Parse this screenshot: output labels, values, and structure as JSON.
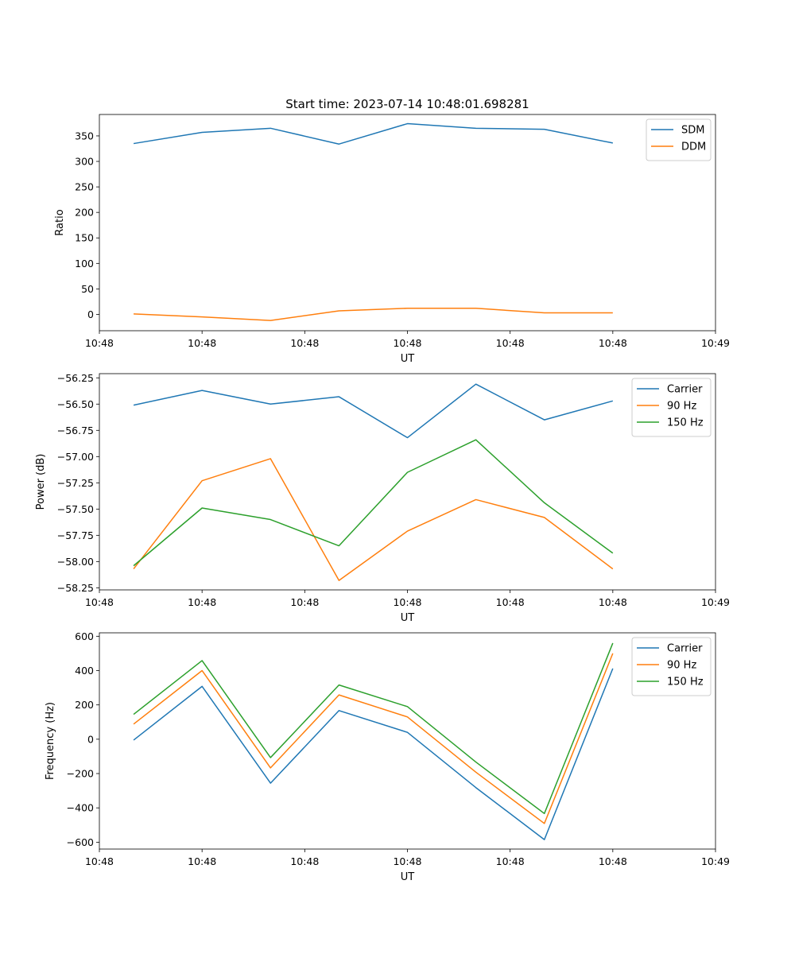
{
  "figure": {
    "title": "Start time: 2023-07-14 10:48:01.698281"
  },
  "colors": {
    "blue": "#1f77b4",
    "orange": "#ff7f0e",
    "green": "#2ca02c"
  },
  "chart_data": [
    {
      "type": "line",
      "title": "Start time: 2023-07-14 10:48:01.698281",
      "xlabel": "UT",
      "ylabel": "Ratio",
      "x": [
        1,
        2,
        3,
        4,
        5,
        6,
        7,
        8
      ],
      "xlim": [
        0.5,
        9.5
      ],
      "xticks": [
        0.5,
        2.0,
        3.5,
        5.0,
        6.5,
        8.0,
        9.5
      ],
      "xtick_labels": [
        "10:48",
        "10:48",
        "10:48",
        "10:48",
        "10:48",
        "10:48",
        "10:49"
      ],
      "ylim": [
        -32,
        392
      ],
      "yticks": [
        0,
        50,
        100,
        150,
        200,
        250,
        300,
        350
      ],
      "legend_position": "top-right",
      "series": [
        {
          "name": "SDM",
          "color": "#1f77b4",
          "values": [
            335,
            357,
            365,
            334,
            374,
            365,
            363,
            336
          ]
        },
        {
          "name": "DDM",
          "color": "#ff7f0e",
          "values": [
            1,
            -5,
            -12,
            7,
            12,
            12,
            3,
            3
          ]
        }
      ]
    },
    {
      "type": "line",
      "title": "",
      "xlabel": "UT",
      "ylabel": "Power (dB)",
      "x": [
        1,
        2,
        3,
        4,
        5,
        6,
        7,
        8
      ],
      "xlim": [
        0.5,
        9.5
      ],
      "xticks": [
        0.5,
        2.0,
        3.5,
        5.0,
        6.5,
        8.0,
        9.5
      ],
      "xtick_labels": [
        "10:48",
        "10:48",
        "10:48",
        "10:48",
        "10:48",
        "10:48",
        "10:49"
      ],
      "ylim": [
        -58.27,
        -56.21
      ],
      "yticks": [
        -58.25,
        -58.0,
        -57.75,
        -57.5,
        -57.25,
        -57.0,
        -56.75,
        -56.5,
        -56.25
      ],
      "ytick_labels": [
        "−58.25",
        "−58.00",
        "−57.75",
        "−57.50",
        "−57.25",
        "−57.00",
        "−56.75",
        "−56.50",
        "−56.25"
      ],
      "legend_position": "top-right",
      "series": [
        {
          "name": "Carrier",
          "color": "#1f77b4",
          "values": [
            -56.51,
            -56.37,
            -56.5,
            -56.43,
            -56.82,
            -56.31,
            -56.65,
            -56.47
          ]
        },
        {
          "name": "90 Hz",
          "color": "#ff7f0e",
          "values": [
            -58.07,
            -57.23,
            -57.02,
            -58.18,
            -57.71,
            -57.41,
            -57.58,
            -58.07
          ]
        },
        {
          "name": "150 Hz",
          "color": "#2ca02c",
          "values": [
            -58.04,
            -57.49,
            -57.6,
            -57.85,
            -57.15,
            -56.84,
            -57.44,
            -57.92
          ]
        }
      ]
    },
    {
      "type": "line",
      "title": "",
      "xlabel": "UT",
      "ylabel": "Frequency (Hz)",
      "x": [
        1,
        2,
        3,
        4,
        5,
        6,
        7,
        8
      ],
      "xlim": [
        0.5,
        9.5
      ],
      "xticks": [
        0.5,
        2.0,
        3.5,
        5.0,
        6.5,
        8.0,
        9.5
      ],
      "xtick_labels": [
        "10:48",
        "10:48",
        "10:48",
        "10:48",
        "10:48",
        "10:48",
        "10:49"
      ],
      "ylim": [
        -640,
        620
      ],
      "yticks": [
        -600,
        -400,
        -200,
        0,
        200,
        400,
        600
      ],
      "ytick_labels": [
        "−600",
        "−400",
        "−200",
        "0",
        "200",
        "400",
        "600"
      ],
      "legend_position": "top-right",
      "series": [
        {
          "name": "Carrier",
          "color": "#1f77b4",
          "values": [
            -5,
            308,
            -256,
            167,
            40,
            -282,
            -585,
            412
          ]
        },
        {
          "name": "90 Hz",
          "color": "#ff7f0e",
          "values": [
            88,
            400,
            -167,
            258,
            130,
            -192,
            -491,
            500
          ]
        },
        {
          "name": "150 Hz",
          "color": "#2ca02c",
          "values": [
            145,
            458,
            -107,
            316,
            190,
            -133,
            -433,
            560
          ]
        }
      ]
    }
  ]
}
